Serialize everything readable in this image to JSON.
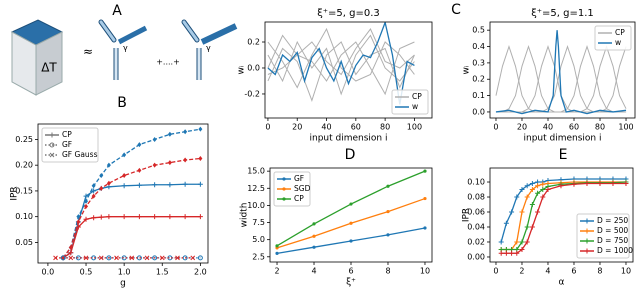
{
  "panel_a": {
    "label": "A",
    "cube_label": "ΔT",
    "approx": "≈",
    "gammas": [
      "γ",
      "γ"
    ],
    "ellipsis": "+....+"
  },
  "chart_data": [
    {
      "type": "line",
      "panel_label": "B",
      "xlabel": "g",
      "ylabel": "IPR",
      "xlim": [
        -0.13,
        2.1
      ],
      "ylim": [
        0.01,
        0.28
      ],
      "xticks": [
        {
          "value": 0,
          "label": "0.0"
        },
        0.5,
        {
          "value": 1,
          "label": "1.0"
        },
        1.5,
        {
          "value": 2,
          "label": "2.0"
        }
      ],
      "yticks": [
        0.05,
        {
          "value": 0.1,
          "label": "0.10"
        },
        0.15,
        {
          "value": 0.2,
          "label": "0.20"
        },
        0.25
      ],
      "legend": "upper left",
      "legend_entries": [
        {
          "name": "CP",
          "color": "#777777",
          "dash": "solid",
          "marker": "plus"
        },
        {
          "name": "GF",
          "color": "#777777",
          "dash": "dotted",
          "marker": "circle"
        },
        {
          "name": "GF Gauss",
          "color": "#777777",
          "dash": "dotted",
          "marker": "x"
        }
      ],
      "series": [
        {
          "color": "#1f77b4",
          "dash": "solid",
          "marker": "plus",
          "x": [
            0.2,
            0.3,
            0.4,
            0.5,
            0.6,
            0.7,
            0.8,
            1.0,
            1.2,
            1.4,
            1.6,
            1.8,
            2.0
          ],
          "values": [
            0.02,
            0.03,
            0.09,
            0.14,
            0.15,
            0.155,
            0.158,
            0.16,
            0.161,
            0.162,
            0.162,
            0.163,
            0.163
          ]
        },
        {
          "color": "#d62728",
          "dash": "solid",
          "marker": "plus",
          "x": [
            0.2,
            0.3,
            0.4,
            0.5,
            0.6,
            0.7,
            0.8,
            1.0,
            1.2,
            1.4,
            1.6,
            1.8,
            2.0
          ],
          "values": [
            0.02,
            0.03,
            0.08,
            0.095,
            0.098,
            0.099,
            0.1,
            0.1,
            0.1,
            0.1,
            0.1,
            0.1,
            0.1
          ]
        },
        {
          "color": "#1f77b4",
          "dash": "dashed",
          "marker": "diamond",
          "x": [
            0.2,
            0.3,
            0.4,
            0.5,
            0.6,
            0.7,
            0.8,
            1.0,
            1.2,
            1.4,
            1.6,
            1.8,
            2.0
          ],
          "values": [
            0.02,
            0.04,
            0.1,
            0.13,
            0.16,
            0.18,
            0.2,
            0.22,
            0.24,
            0.25,
            0.26,
            0.265,
            0.27
          ]
        },
        {
          "color": "#d62728",
          "dash": "dashed",
          "marker": "diamond",
          "x": [
            0.2,
            0.3,
            0.4,
            0.5,
            0.6,
            0.7,
            0.8,
            1.0,
            1.2,
            1.4,
            1.6,
            1.8,
            2.0
          ],
          "values": [
            0.02,
            0.04,
            0.09,
            0.12,
            0.14,
            0.155,
            0.165,
            0.18,
            0.19,
            0.2,
            0.205,
            0.21,
            0.213
          ]
        },
        {
          "color": "#1f77b4",
          "dash": "dotted",
          "marker": "circle",
          "x": [
            0.2,
            0.4,
            0.6,
            0.8,
            1.0,
            1.2,
            1.4,
            1.6,
            1.8,
            2.0
          ],
          "values": [
            0.02,
            0.02,
            0.02,
            0.02,
            0.02,
            0.02,
            0.02,
            0.02,
            0.02,
            0.02
          ]
        },
        {
          "color": "#d62728",
          "dash": "dotted",
          "marker": "x",
          "x": [
            0.1,
            0.3,
            0.5,
            0.7,
            0.9,
            1.1,
            1.3,
            1.5,
            1.7,
            1.9
          ],
          "values": [
            0.02,
            0.02,
            0.02,
            0.02,
            0.02,
            0.02,
            0.02,
            0.02,
            0.02,
            0.02
          ]
        }
      ]
    },
    {
      "type": "line",
      "title": "ξ⁺=5, g=0.3",
      "xlabel": "input dimension i",
      "ylabel": "wᵢ",
      "xlim": [
        -2,
        112
      ],
      "ylim": [
        -0.385,
        0.354
      ],
      "xticks": [
        0,
        20,
        40,
        60,
        80,
        100
      ],
      "yticks": [
        -0.2,
        {
          "value": 0,
          "label": "0.0"
        },
        0.2
      ],
      "legend": "lower right",
      "series": [
        {
          "name": "CP",
          "color": "#b0b0b0",
          "dash": "solid",
          "x": [
            0,
            10,
            20,
            30,
            40,
            50,
            60,
            70,
            80,
            90,
            100
          ],
          "curves": [
            [
              0.1,
              -0.1,
              0.2,
              0.0,
              0.15,
              -0.2,
              0.1,
              0.25,
              0.0,
              -0.1,
              0.05
            ],
            [
              -0.1,
              0.15,
              0.05,
              -0.25,
              0.1,
              0.2,
              -0.05,
              0.1,
              0.15,
              -0.15,
              0.1
            ],
            [
              0.2,
              0.05,
              -0.15,
              0.1,
              0.3,
              0.0,
              -0.1,
              -0.05,
              0.2,
              0.1,
              -0.05
            ],
            [
              0.0,
              0.25,
              0.1,
              0.05,
              -0.1,
              0.1,
              0.2,
              0.0,
              -0.2,
              0.15,
              0.2
            ],
            [
              -0.05,
              0.0,
              0.1,
              0.2,
              0.05,
              -0.05,
              0.15,
              0.3,
              0.05,
              0.0,
              0.1
            ]
          ]
        },
        {
          "name": "w",
          "color": "#1f77b4",
          "dash": "solid",
          "x": [
            0,
            5,
            10,
            15,
            20,
            25,
            30,
            35,
            40,
            45,
            50,
            55,
            60,
            65,
            70,
            75,
            80,
            85,
            90,
            95,
            100
          ],
          "values": [
            0.0,
            -0.05,
            0.1,
            0.05,
            0.12,
            -0.1,
            0.08,
            0.15,
            0.0,
            -0.1,
            0.05,
            -0.12,
            0.02,
            0.1,
            0.08,
            0.2,
            0.35,
            0.1,
            -0.28,
            0.05,
            0.02
          ]
        }
      ]
    },
    {
      "type": "line",
      "panel_label": "C",
      "title": "ξ⁺=5, g=1.1",
      "xlabel": "input dimension i",
      "ylabel": "wᵢ",
      "xlim": [
        -4.6,
        106.9
      ],
      "ylim": [
        -0.037,
        0.55
      ],
      "xticks": [
        0,
        20,
        40,
        60,
        80,
        100
      ],
      "yticks": [
        {
          "value": 0,
          "label": "0.0"
        },
        0.1,
        0.2,
        0.3,
        0.4,
        0.5
      ],
      "legend": "upper right",
      "series": [
        {
          "name": "CP",
          "color": "#b0b0b0",
          "dash": "solid",
          "x": [
            0,
            5,
            10,
            15,
            20,
            25,
            30,
            35,
            40,
            45,
            50,
            55,
            60,
            65,
            70,
            75,
            80,
            85,
            90,
            95,
            100
          ],
          "curves": [
            [
              0.1,
              0.28,
              0.4,
              0.28,
              0.1,
              0.02,
              0,
              0,
              0,
              0,
              0,
              0,
              0,
              0,
              0,
              0,
              0,
              0,
              0,
              0,
              0
            ],
            [
              0,
              0,
              0.02,
              0.1,
              0.28,
              0.4,
              0.28,
              0.1,
              0.02,
              0,
              0,
              0,
              0,
              0,
              0,
              0,
              0,
              0,
              0,
              0,
              0
            ],
            [
              0,
              0,
              0,
              0,
              0,
              0.02,
              0.1,
              0.28,
              0.4,
              0.28,
              0.1,
              0.02,
              0,
              0,
              0,
              0,
              0,
              0,
              0,
              0,
              0
            ],
            [
              0,
              0,
              0,
              0,
              0,
              0,
              0,
              0,
              0.02,
              0.1,
              0.28,
              0.4,
              0.28,
              0.1,
              0.02,
              0,
              0,
              0,
              0,
              0,
              0
            ],
            [
              0,
              0,
              0,
              0,
              0,
              0,
              0,
              0,
              0,
              0,
              0,
              0.02,
              0.1,
              0.28,
              0.4,
              0.28,
              0.1,
              0.02,
              0,
              0,
              0
            ],
            [
              0,
              0,
              0,
              0,
              0,
              0,
              0,
              0,
              0,
              0,
              0,
              0,
              0,
              0,
              0.02,
              0.1,
              0.28,
              0.4,
              0.28,
              0.1,
              0.02
            ],
            [
              0,
              0,
              0,
              0,
              0,
              0,
              0,
              0,
              0,
              0,
              0,
              0,
              0,
              0,
              0,
              0,
              0,
              0.02,
              0.1,
              0.28,
              0.4
            ]
          ]
        },
        {
          "name": "w",
          "color": "#1f77b4",
          "dash": "solid",
          "x": [
            0,
            10,
            20,
            30,
            40,
            44,
            46,
            47,
            48,
            50,
            54,
            60,
            70,
            80,
            90,
            100
          ],
          "values": [
            0.0,
            0.01,
            -0.01,
            0.01,
            0.0,
            0.1,
            0.4,
            0.5,
            0.4,
            0.1,
            0.0,
            0.01,
            -0.01,
            0.01,
            0.0,
            0.01
          ]
        }
      ]
    },
    {
      "type": "line",
      "panel_label": "D",
      "xlabel": "ξ⁺",
      "ylabel": "width",
      "xlim": [
        1.62,
        10.38
      ],
      "ylim": [
        1.74,
        15.46
      ],
      "xticks": [
        2,
        4,
        6,
        8,
        10
      ],
      "yticks": [
        2.5,
        {
          "value": 5,
          "label": "5.0"
        },
        7.5,
        {
          "value": 10,
          "label": "10.0"
        },
        12.5,
        {
          "value": 15,
          "label": "15.0"
        }
      ],
      "legend": "upper left",
      "series": [
        {
          "name": "GF",
          "color": "#1f77b4",
          "dash": "solid",
          "marker": "dot",
          "x": [
            2,
            4,
            6,
            8,
            10
          ],
          "values": [
            3.0,
            3.9,
            4.8,
            5.7,
            6.7
          ]
        },
        {
          "name": "SGD",
          "color": "#ff7f0e",
          "dash": "solid",
          "marker": "dot",
          "x": [
            2,
            4,
            6,
            8,
            10
          ],
          "values": [
            3.8,
            5.5,
            7.4,
            9.1,
            11.0
          ]
        },
        {
          "name": "CP",
          "color": "#2ca02c",
          "dash": "solid",
          "marker": "dot",
          "x": [
            2,
            4,
            6,
            8,
            10
          ],
          "values": [
            4.1,
            7.3,
            10.2,
            12.8,
            15.0
          ]
        }
      ]
    },
    {
      "type": "line",
      "panel_label": "E",
      "xlabel": "α",
      "ylabel": "IPR",
      "xlim": [
        -0.46,
        10.54
      ],
      "ylim": [
        -0.0067,
        0.1187
      ],
      "xticks": [
        0,
        2,
        4,
        6,
        8,
        10
      ],
      "yticks": [
        {
          "value": 0,
          "label": "0.00"
        },
        {
          "value": 0.02,
          "label": "0.02"
        },
        {
          "value": 0.04,
          "label": "0.04"
        },
        {
          "value": 0.06,
          "label": "0.06"
        },
        {
          "value": 0.08,
          "label": "0.08"
        },
        {
          "value": 0.1,
          "label": "0.10"
        }
      ],
      "legend": "lower right",
      "series": [
        {
          "name": "D = 250",
          "color": "#1f77b4",
          "dash": "solid",
          "marker": "plus",
          "x": [
            0.4,
            0.8,
            1.2,
            1.6,
            2.0,
            2.4,
            2.8,
            3.2,
            3.6,
            4.0,
            5,
            6,
            7,
            8,
            9,
            10
          ],
          "values": [
            0.02,
            0.045,
            0.06,
            0.08,
            0.09,
            0.095,
            0.098,
            0.1,
            0.1,
            0.102,
            0.103,
            0.104,
            0.104,
            0.104,
            0.104,
            0.104
          ]
        },
        {
          "name": "D = 500",
          "color": "#ff7f0e",
          "dash": "solid",
          "marker": "plus",
          "x": [
            0.4,
            0.8,
            1.2,
            1.6,
            2.0,
            2.4,
            2.8,
            3.2,
            3.6,
            4.0,
            5,
            6,
            7,
            8,
            9,
            10
          ],
          "values": [
            0.01,
            0.01,
            0.01,
            0.02,
            0.06,
            0.08,
            0.09,
            0.095,
            0.097,
            0.098,
            0.099,
            0.1,
            0.1,
            0.1,
            0.1,
            0.1
          ]
        },
        {
          "name": "D = 750",
          "color": "#2ca02c",
          "dash": "solid",
          "marker": "plus",
          "x": [
            0.4,
            0.8,
            1.2,
            1.6,
            2.0,
            2.4,
            2.8,
            3.2,
            3.6,
            4.0,
            5,
            6,
            7,
            8,
            9,
            10
          ],
          "values": [
            0.01,
            0.01,
            0.01,
            0.01,
            0.02,
            0.04,
            0.07,
            0.085,
            0.09,
            0.094,
            0.097,
            0.098,
            0.099,
            0.099,
            0.099,
            0.1
          ]
        },
        {
          "name": "D = 1000",
          "color": "#d62728",
          "dash": "solid",
          "marker": "plus",
          "x": [
            0.4,
            0.8,
            1.2,
            1.6,
            2.0,
            2.4,
            2.8,
            3.2,
            3.6,
            4.0,
            5,
            6,
            7,
            8,
            9,
            10
          ],
          "values": [
            0.005,
            0.005,
            0.005,
            0.005,
            0.01,
            0.02,
            0.04,
            0.06,
            0.08,
            0.09,
            0.095,
            0.097,
            0.098,
            0.098,
            0.098,
            0.098
          ]
        }
      ]
    }
  ]
}
